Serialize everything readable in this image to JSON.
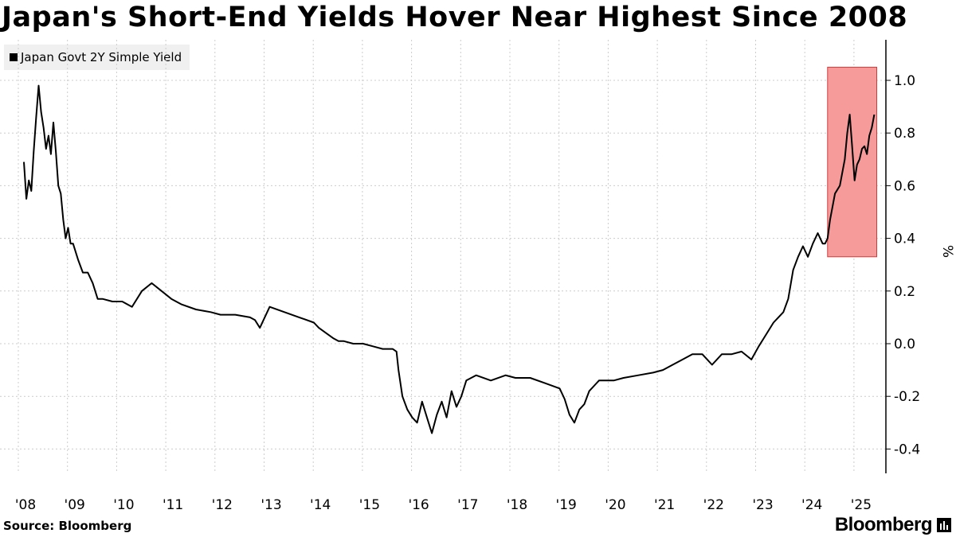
{
  "header": {
    "title": "Japan's Short-End Yields Hover Near Highest Since 2008"
  },
  "legend": {
    "label": "Japan Govt 2Y Simple Yield"
  },
  "footer": {
    "source": "Source: Bloomberg",
    "brand": "Bloomberg"
  },
  "colors": {
    "line": "#000000",
    "highlight_fill": "#f79a9a",
    "highlight_stroke": "#d23c3c",
    "grid": "#cccccc"
  },
  "chart_data": {
    "type": "line",
    "title": "Japan's Short-End Yields Hover Near Highest Since 2008",
    "xlabel": "",
    "ylabel": "%",
    "y_axis_side": "right",
    "ylim": [
      -0.5,
      1.15
    ],
    "xlim": [
      2008.0,
      2025.4
    ],
    "yticks": [
      -0.4,
      -0.2,
      0.0,
      0.2,
      0.4,
      0.6,
      0.8,
      1.0
    ],
    "ytick_labels": [
      "-0.4",
      "-0.2",
      "0.0",
      "0.2",
      "0.4",
      "0.6",
      "0.8",
      "1.0"
    ],
    "xticks": [
      2008,
      2009,
      2010,
      2011,
      2012,
      2013,
      2014,
      2015,
      2016,
      2017,
      2018,
      2019,
      2020,
      2021,
      2022,
      2023,
      2024,
      2025
    ],
    "xtick_labels": [
      "'08",
      "'09",
      "'10",
      "'11",
      "'12",
      "'13",
      "'14",
      "'15",
      "'16",
      "'17",
      "'18",
      "'19",
      "'20",
      "'21",
      "'22",
      "'23",
      "'24",
      "'25"
    ],
    "grid": "vertical dotted at year starts",
    "legend_position": "top-left",
    "highlight": {
      "x0": 2024.35,
      "x1": 2025.35,
      "y0": 0.33,
      "y1": 1.05
    },
    "series": [
      {
        "name": "Japan Govt 2Y Simple Yield",
        "x": [
          2008.0,
          2008.05,
          2008.1,
          2008.15,
          2008.2,
          2008.25,
          2008.3,
          2008.35,
          2008.4,
          2008.45,
          2008.5,
          2008.55,
          2008.6,
          2008.65,
          2008.7,
          2008.75,
          2008.8,
          2008.85,
          2008.9,
          2008.95,
          2009.0,
          2009.1,
          2009.2,
          2009.3,
          2009.4,
          2009.5,
          2009.6,
          2009.8,
          2010.0,
          2010.2,
          2010.4,
          2010.6,
          2010.8,
          2011.0,
          2011.2,
          2011.5,
          2011.8,
          2012.0,
          2012.3,
          2012.6,
          2012.7,
          2012.8,
          2012.9,
          2013.0,
          2013.3,
          2013.6,
          2013.9,
          2014.0,
          2014.15,
          2014.3,
          2014.4,
          2014.5,
          2014.7,
          2014.9,
          2015.1,
          2015.3,
          2015.5,
          2015.58,
          2015.62,
          2015.7,
          2015.8,
          2015.9,
          2016.0,
          2016.1,
          2016.2,
          2016.3,
          2016.4,
          2016.5,
          2016.6,
          2016.7,
          2016.8,
          2016.9,
          2017.0,
          2017.2,
          2017.5,
          2017.8,
          2018.0,
          2018.3,
          2018.6,
          2018.9,
          2019.0,
          2019.1,
          2019.2,
          2019.3,
          2019.4,
          2019.5,
          2019.6,
          2019.7,
          2019.8,
          2019.9,
          2020.0,
          2020.2,
          2020.5,
          2020.8,
          2021.0,
          2021.2,
          2021.4,
          2021.6,
          2021.8,
          2022.0,
          2022.2,
          2022.4,
          2022.6,
          2022.8,
          2022.95,
          2023.05,
          2023.15,
          2023.25,
          2023.35,
          2023.45,
          2023.55,
          2023.65,
          2023.75,
          2023.85,
          2023.95,
          2024.05,
          2024.15,
          2024.25,
          2024.3,
          2024.35,
          2024.4,
          2024.5,
          2024.6,
          2024.7,
          2024.75,
          2024.8,
          2024.85,
          2024.9,
          2024.95,
          2025.0,
          2025.05,
          2025.1,
          2025.15,
          2025.2,
          2025.25,
          2025.3
        ],
        "values": [
          0.69,
          0.55,
          0.62,
          0.58,
          0.73,
          0.86,
          0.98,
          0.88,
          0.82,
          0.74,
          0.79,
          0.72,
          0.84,
          0.73,
          0.6,
          0.57,
          0.47,
          0.4,
          0.44,
          0.38,
          0.38,
          0.32,
          0.27,
          0.27,
          0.23,
          0.17,
          0.17,
          0.16,
          0.16,
          0.14,
          0.2,
          0.23,
          0.2,
          0.17,
          0.15,
          0.13,
          0.12,
          0.11,
          0.11,
          0.1,
          0.09,
          0.06,
          0.1,
          0.14,
          0.12,
          0.1,
          0.08,
          0.06,
          0.04,
          0.02,
          0.01,
          0.01,
          0.0,
          0.0,
          -0.01,
          -0.02,
          -0.02,
          -0.03,
          -0.1,
          -0.2,
          -0.25,
          -0.28,
          -0.3,
          -0.22,
          -0.28,
          -0.34,
          -0.27,
          -0.22,
          -0.28,
          -0.18,
          -0.24,
          -0.2,
          -0.14,
          -0.12,
          -0.14,
          -0.12,
          -0.13,
          -0.13,
          -0.15,
          -0.17,
          -0.21,
          -0.27,
          -0.3,
          -0.25,
          -0.23,
          -0.18,
          -0.16,
          -0.14,
          -0.14,
          -0.14,
          -0.14,
          -0.13,
          -0.12,
          -0.11,
          -0.1,
          -0.08,
          -0.06,
          -0.04,
          -0.04,
          -0.08,
          -0.04,
          -0.04,
          -0.03,
          -0.06,
          -0.01,
          0.02,
          0.05,
          0.08,
          0.1,
          0.12,
          0.17,
          0.28,
          0.33,
          0.37,
          0.33,
          0.38,
          0.42,
          0.38,
          0.38,
          0.4,
          0.47,
          0.57,
          0.6,
          0.7,
          0.8,
          0.87,
          0.75,
          0.62,
          0.68,
          0.7,
          0.74,
          0.75,
          0.72,
          0.79,
          0.82,
          0.87
        ]
      }
    ]
  }
}
